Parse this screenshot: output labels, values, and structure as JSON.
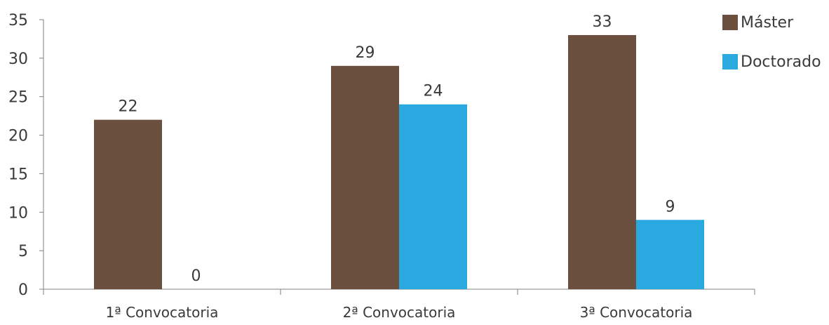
{
  "chart_data": {
    "type": "bar",
    "categories": [
      "1ª Convocatoria",
      "2ª Convocatoria",
      "3ª Convocatoria"
    ],
    "series": [
      {
        "name": "Máster",
        "values": [
          22,
          29,
          33
        ],
        "color": "#6b4f3f"
      },
      {
        "name": "Doctorado",
        "values": [
          0,
          24,
          9
        ],
        "color": "#29a9e0"
      }
    ],
    "yticks": [
      0,
      5,
      10,
      15,
      20,
      25,
      30,
      35
    ],
    "ylim": [
      0,
      35
    ],
    "grid": false,
    "legend_position": "top-right"
  }
}
